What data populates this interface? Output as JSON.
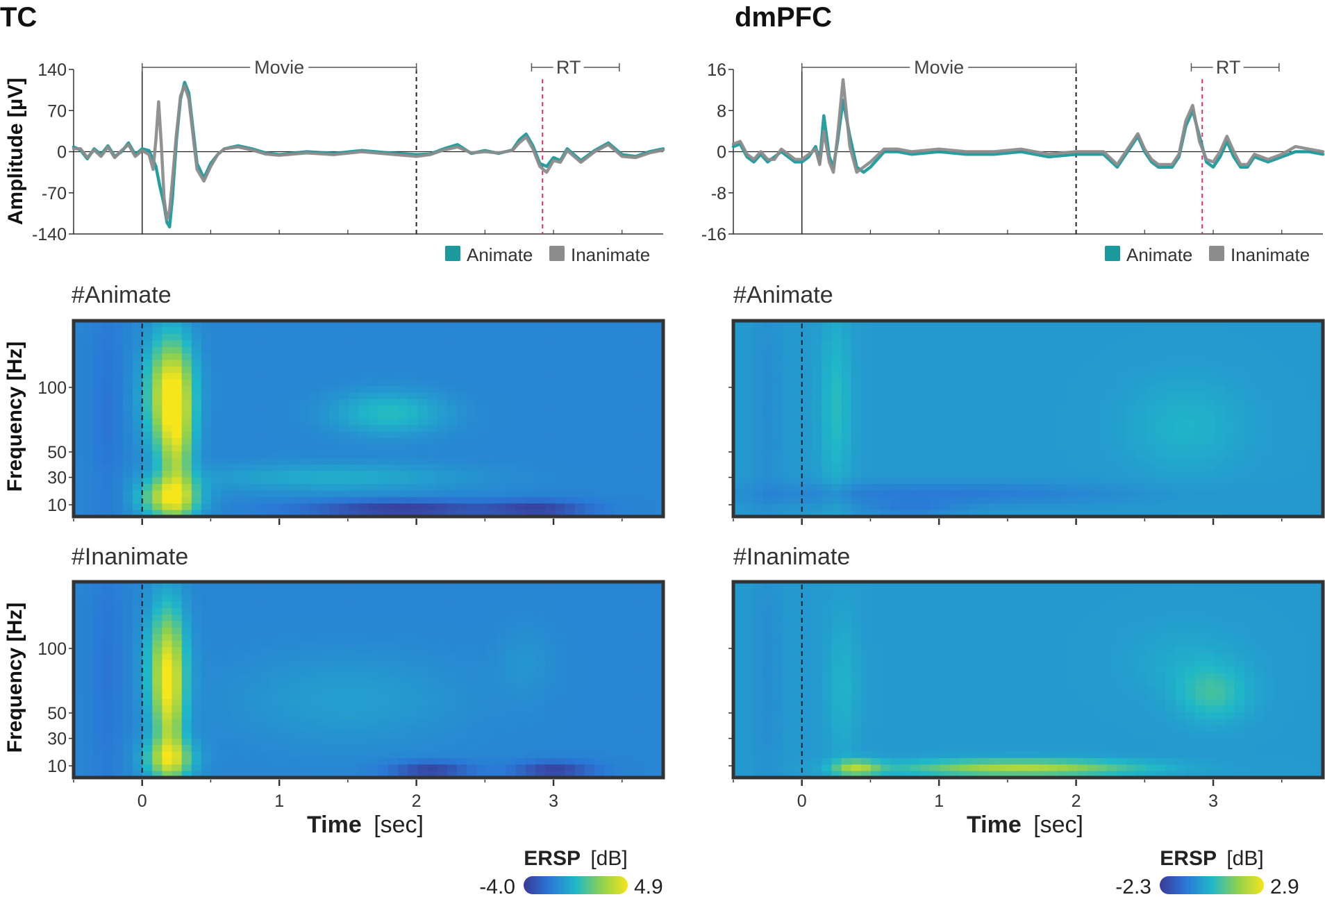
{
  "figure": {
    "panels": [
      {
        "id": "tc",
        "title": "TC",
        "erp": {
          "ylabel": "Amplitude [µV]",
          "ylim": [
            -140,
            140
          ],
          "yticks": [
            {
              "value": 140,
              "label": "140"
            },
            {
              "value": 70,
              "label": "70"
            },
            {
              "value": 0,
              "label": "0"
            },
            {
              "value": -70,
              "label": "-70"
            },
            {
              "value": -140,
              "label": "-140"
            }
          ],
          "movie_label": "Movie",
          "movie_span": [
            0,
            2
          ],
          "rt_label": "RT",
          "rt_span": [
            2.84,
            3.48
          ],
          "rt_line": 2.92
        },
        "tf": [
          {
            "label": "#Animate",
            "condition": "Animate"
          },
          {
            "label": "#Inanimate",
            "condition": "Inanimate"
          }
        ],
        "colorbar": {
          "title": "ERSP",
          "unit": "[dB]",
          "min_label": "-4.0",
          "max_label": "4.9",
          "min": -4.0,
          "max": 4.9
        }
      },
      {
        "id": "dmpfc",
        "title": "dmPFC",
        "erp": {
          "ylabel": "",
          "ylim": [
            -16,
            16
          ],
          "yticks": [
            {
              "value": 16,
              "label": "16"
            },
            {
              "value": 8,
              "label": "8"
            },
            {
              "value": 0,
              "label": "0"
            },
            {
              "value": -8,
              "label": "-8"
            },
            {
              "value": -16,
              "label": "-16"
            }
          ],
          "movie_label": "Movie",
          "movie_span": [
            0,
            2
          ],
          "rt_label": "RT",
          "rt_span": [
            2.84,
            3.48
          ],
          "rt_line": 2.92
        },
        "tf": [
          {
            "label": "#Animate",
            "condition": "Animate"
          },
          {
            "label": "#Inanimate",
            "condition": "Inanimate"
          }
        ],
        "colorbar": {
          "title": "ERSP",
          "unit": "[dB]",
          "min_label": "-2.3",
          "max_label": "2.9",
          "min": -2.3,
          "max": 2.9
        }
      }
    ],
    "legend": [
      {
        "label": "Animate",
        "color": "#1a9a9c"
      },
      {
        "label": "Inanimate",
        "color": "#8c8c8c"
      }
    ],
    "freq_ylabel": "Frequency [Hz]",
    "freq_ticks": [
      {
        "value": 10,
        "label": "10"
      },
      {
        "value": 30,
        "label": "30"
      },
      {
        "value": 50,
        "label": "50"
      },
      {
        "value": 100,
        "label": "100"
      }
    ],
    "xlabel_bold": "Time",
    "xlabel_unit": "[sec]",
    "xticks": [
      {
        "value": 0,
        "label": "0"
      },
      {
        "value": 1,
        "label": "1"
      },
      {
        "value": 2,
        "label": "2"
      },
      {
        "value": 3,
        "label": "3"
      }
    ],
    "colors": {
      "animate": "#1a9a9c",
      "inanimate": "#8c8c8c",
      "rt_line": "#d6336c",
      "frame": "#333333"
    }
  },
  "chart_data": [
    {
      "type": "line",
      "title": "TC",
      "xlabel": "",
      "ylabel": "Amplitude [µV]",
      "xlim": [
        -0.5,
        3.8
      ],
      "ylim": [
        -140,
        140
      ],
      "series": [
        {
          "name": "Animate",
          "x": [
            -0.5,
            -0.45,
            -0.4,
            -0.35,
            -0.3,
            -0.25,
            -0.2,
            -0.15,
            -0.1,
            -0.05,
            0,
            0.05,
            0.1,
            0.13,
            0.16,
            0.18,
            0.2,
            0.22,
            0.25,
            0.28,
            0.31,
            0.34,
            0.37,
            0.4,
            0.45,
            0.5,
            0.55,
            0.6,
            0.7,
            0.8,
            0.9,
            1.0,
            1.2,
            1.4,
            1.6,
            1.8,
            2.0,
            2.1,
            2.2,
            2.3,
            2.4,
            2.5,
            2.6,
            2.7,
            2.75,
            2.8,
            2.85,
            2.9,
            2.95,
            3.0,
            3.05,
            3.1,
            3.2,
            3.3,
            3.4,
            3.5,
            3.6,
            3.7,
            3.8
          ],
          "y": [
            8,
            3,
            -12,
            5,
            -5,
            10,
            -8,
            0,
            15,
            -5,
            5,
            2,
            -25,
            -60,
            -90,
            -120,
            -128,
            -80,
            20,
            90,
            118,
            100,
            40,
            -20,
            -45,
            -20,
            -5,
            5,
            10,
            5,
            -2,
            -5,
            0,
            -3,
            2,
            -2,
            -5,
            -4,
            5,
            12,
            -3,
            2,
            -3,
            3,
            20,
            30,
            10,
            -20,
            -25,
            -10,
            -15,
            5,
            -15,
            2,
            15,
            -5,
            -8,
            0,
            5
          ]
        },
        {
          "name": "Inanimate",
          "x": [
            -0.5,
            -0.45,
            -0.4,
            -0.35,
            -0.3,
            -0.25,
            -0.2,
            -0.15,
            -0.1,
            -0.05,
            0,
            0.05,
            0.08,
            0.1,
            0.12,
            0.14,
            0.16,
            0.18,
            0.2,
            0.22,
            0.25,
            0.28,
            0.31,
            0.34,
            0.37,
            0.4,
            0.45,
            0.5,
            0.55,
            0.6,
            0.7,
            0.8,
            0.9,
            1.0,
            1.2,
            1.4,
            1.6,
            1.8,
            2.0,
            2.1,
            2.2,
            2.3,
            2.4,
            2.5,
            2.6,
            2.7,
            2.75,
            2.8,
            2.85,
            2.9,
            2.95,
            3.0,
            3.05,
            3.1,
            3.2,
            3.3,
            3.4,
            3.5,
            3.6,
            3.7,
            3.8
          ],
          "y": [
            5,
            5,
            -10,
            3,
            -8,
            8,
            -10,
            2,
            12,
            -8,
            2,
            -5,
            -30,
            20,
            85,
            10,
            -80,
            -115,
            -100,
            -50,
            30,
            95,
            112,
            90,
            30,
            -30,
            -50,
            -25,
            -5,
            5,
            8,
            3,
            -4,
            -6,
            -2,
            -5,
            0,
            -4,
            -8,
            -5,
            3,
            8,
            -2,
            0,
            -2,
            2,
            15,
            25,
            5,
            -25,
            -35,
            -15,
            -18,
            2,
            -18,
            0,
            12,
            -8,
            -10,
            -2,
            3
          ]
        }
      ],
      "annotations": [
        {
          "label": "Movie",
          "x_range": [
            0,
            2
          ]
        },
        {
          "label": "RT",
          "x_range": [
            2.84,
            3.48
          ],
          "line_x": 2.92
        }
      ]
    },
    {
      "type": "line",
      "title": "dmPFC",
      "xlabel": "",
      "ylabel": "",
      "xlim": [
        -0.5,
        3.8
      ],
      "ylim": [
        -16,
        16
      ],
      "series": [
        {
          "name": "Animate",
          "x": [
            -0.5,
            -0.45,
            -0.4,
            -0.35,
            -0.3,
            -0.25,
            -0.2,
            -0.15,
            -0.1,
            -0.05,
            0,
            0.05,
            0.1,
            0.13,
            0.16,
            0.2,
            0.23,
            0.26,
            0.3,
            0.35,
            0.4,
            0.45,
            0.5,
            0.6,
            0.7,
            0.8,
            1.0,
            1.2,
            1.4,
            1.6,
            1.8,
            2.0,
            2.1,
            2.2,
            2.3,
            2.4,
            2.45,
            2.5,
            2.55,
            2.6,
            2.7,
            2.75,
            2.8,
            2.85,
            2.9,
            2.95,
            3.0,
            3.05,
            3.1,
            3.15,
            3.2,
            3.25,
            3.3,
            3.4,
            3.5,
            3.6,
            3.7,
            3.8
          ],
          "y": [
            1,
            1.5,
            -1,
            -2,
            -0.5,
            -2,
            -1,
            0,
            -1,
            -2,
            -2,
            -1,
            1,
            -2,
            7,
            -1,
            -3,
            2,
            10,
            3,
            -3,
            -4,
            -3,
            0,
            0,
            -0.5,
            0,
            -0.5,
            -0.5,
            0,
            -1,
            -0.5,
            -0.5,
            -0.5,
            -3,
            1,
            3,
            0,
            -2,
            -3,
            -3,
            -1,
            5,
            8,
            3,
            -2,
            -3,
            -1,
            2,
            -1,
            -3,
            -3,
            -1,
            -2,
            -1,
            0,
            0,
            -0.5
          ]
        },
        {
          "name": "Inanimate",
          "x": [
            -0.5,
            -0.45,
            -0.4,
            -0.35,
            -0.3,
            -0.25,
            -0.2,
            -0.15,
            -0.1,
            -0.05,
            0,
            0.05,
            0.1,
            0.13,
            0.16,
            0.2,
            0.23,
            0.26,
            0.3,
            0.35,
            0.4,
            0.45,
            0.5,
            0.6,
            0.7,
            0.8,
            1.0,
            1.2,
            1.4,
            1.6,
            1.8,
            2.0,
            2.1,
            2.2,
            2.3,
            2.4,
            2.45,
            2.5,
            2.55,
            2.6,
            2.7,
            2.75,
            2.8,
            2.85,
            2.9,
            2.95,
            3.0,
            3.05,
            3.1,
            3.15,
            3.2,
            3.25,
            3.3,
            3.4,
            3.5,
            3.6,
            3.7,
            3.8
          ],
          "y": [
            1.5,
            2,
            -0.5,
            -1.5,
            0,
            -1.5,
            -1.5,
            0.5,
            -0.5,
            -1.5,
            -1.5,
            -0.5,
            0.5,
            -2.5,
            4,
            -2,
            -4,
            3,
            14,
            1,
            -4,
            -3,
            -2,
            0.5,
            0.5,
            0,
            0.5,
            0,
            0,
            0.5,
            -0.5,
            0,
            0,
            0,
            -2.5,
            1.5,
            3.5,
            0.5,
            -1.5,
            -2.5,
            -2.5,
            -0.5,
            6,
            9,
            2,
            -1.5,
            -2,
            0,
            3,
            0,
            -2.5,
            -2.5,
            -0.5,
            -1.5,
            -0.5,
            1,
            0.5,
            0
          ]
        }
      ],
      "annotations": [
        {
          "label": "Movie",
          "x_range": [
            0,
            2
          ]
        },
        {
          "label": "RT",
          "x_range": [
            2.84,
            3.48
          ],
          "line_x": 2.92
        }
      ]
    },
    {
      "type": "heatmap",
      "title": "#Animate (TC)",
      "xlabel": "Time [sec]",
      "ylabel": "Frequency [Hz]",
      "xlim": [
        -0.5,
        3.8
      ],
      "ylim": [
        1,
        150
      ],
      "zlim": [
        -4.0,
        4.9
      ],
      "baseline": 0.3,
      "blobs": [
        {
          "t": 0.2,
          "f": 95,
          "dt": 0.12,
          "df": 30,
          "amp": 0.62
        },
        {
          "t": 0.2,
          "f": 15,
          "dt": 0.15,
          "df": 10,
          "amp": 0.55
        },
        {
          "t": 0.25,
          "f": 55,
          "dt": 0.08,
          "df": 40,
          "amp": 0.38
        },
        {
          "t": 1.8,
          "f": 80,
          "dt": 0.3,
          "df": 12,
          "amp": 0.22
        },
        {
          "t": 1.4,
          "f": 30,
          "dt": 0.7,
          "df": 8,
          "amp": 0.16
        },
        {
          "t": 1.9,
          "f": 6,
          "dt": 0.5,
          "df": 4,
          "amp": -0.3
        },
        {
          "t": 2.9,
          "f": 6,
          "dt": 0.25,
          "df": 4,
          "amp": -0.25
        },
        {
          "t": -0.25,
          "f": 80,
          "dt": 0.08,
          "df": 120,
          "amp": -0.06
        }
      ]
    },
    {
      "type": "heatmap",
      "title": "#Inanimate (TC)",
      "xlabel": "Time [sec]",
      "ylabel": "Frequency [Hz]",
      "xlim": [
        -0.5,
        3.8
      ],
      "ylim": [
        1,
        150
      ],
      "zlim": [
        -4.0,
        4.9
      ],
      "baseline": 0.3,
      "blobs": [
        {
          "t": 0.18,
          "f": 85,
          "dt": 0.1,
          "df": 35,
          "amp": 0.5
        },
        {
          "t": 0.2,
          "f": 15,
          "dt": 0.13,
          "df": 10,
          "amp": 0.45
        },
        {
          "t": 0.2,
          "f": 50,
          "dt": 0.07,
          "df": 40,
          "amp": 0.3
        },
        {
          "t": 1.5,
          "f": 60,
          "dt": 0.6,
          "df": 25,
          "amp": 0.1
        },
        {
          "t": 2.1,
          "f": 6,
          "dt": 0.2,
          "df": 4,
          "amp": -0.28
        },
        {
          "t": 3.0,
          "f": 6,
          "dt": 0.2,
          "df": 4,
          "amp": -0.28
        },
        {
          "t": 2.8,
          "f": 90,
          "dt": 0.15,
          "df": 20,
          "amp": 0.06
        },
        {
          "t": -0.25,
          "f": 80,
          "dt": 0.08,
          "df": 120,
          "amp": -0.06
        }
      ]
    },
    {
      "type": "heatmap",
      "title": "#Animate (dmPFC)",
      "xlabel": "Time [sec]",
      "ylabel": "Frequency [Hz]",
      "xlim": [
        -0.5,
        3.8
      ],
      "ylim": [
        1,
        150
      ],
      "zlim": [
        -2.3,
        2.9
      ],
      "baseline": 0.38,
      "blobs": [
        {
          "t": 0.25,
          "f": 85,
          "dt": 0.08,
          "df": 50,
          "amp": 0.14
        },
        {
          "t": 2.8,
          "f": 70,
          "dt": 0.3,
          "df": 25,
          "amp": 0.1
        },
        {
          "t": 1.0,
          "f": 18,
          "dt": 1.0,
          "df": 6,
          "amp": -0.12
        },
        {
          "t": 0.8,
          "f": 6,
          "dt": 0.25,
          "df": 4,
          "amp": -0.1
        },
        {
          "t": -0.25,
          "f": 80,
          "dt": 0.08,
          "df": 120,
          "amp": -0.05
        }
      ]
    },
    {
      "type": "heatmap",
      "title": "#Inanimate (dmPFC)",
      "xlabel": "Time [sec]",
      "ylabel": "Frequency [Hz]",
      "xlim": [
        -0.5,
        3.8
      ],
      "ylim": [
        1,
        150
      ],
      "zlim": [
        -2.3,
        2.9
      ],
      "baseline": 0.38,
      "blobs": [
        {
          "t": 1.6,
          "f": 8,
          "dt": 0.6,
          "df": 4,
          "amp": 0.45
        },
        {
          "t": 0.4,
          "f": 8,
          "dt": 0.12,
          "df": 4,
          "amp": 0.4
        },
        {
          "t": 3.0,
          "f": 65,
          "dt": 0.18,
          "df": 15,
          "amp": 0.18
        },
        {
          "t": 0.3,
          "f": 70,
          "dt": 0.08,
          "df": 40,
          "amp": 0.1
        },
        {
          "t": 2.8,
          "f": 90,
          "dt": 0.3,
          "df": 20,
          "amp": 0.06
        },
        {
          "t": -0.25,
          "f": 80,
          "dt": 0.08,
          "df": 120,
          "amp": -0.05
        }
      ]
    }
  ]
}
